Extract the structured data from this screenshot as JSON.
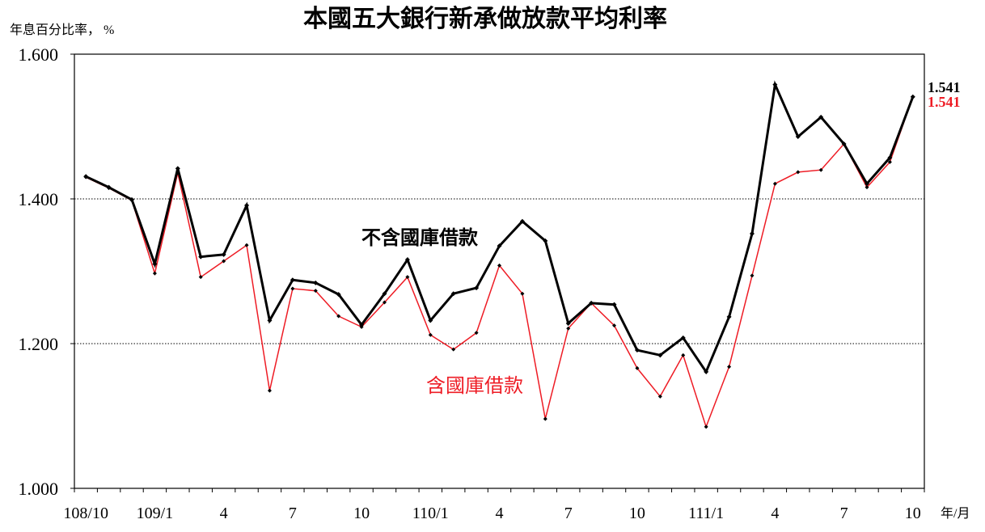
{
  "chart_data": {
    "type": "line",
    "title": "本國五大銀行新承做放款平均利率",
    "ylabel": "年息百分比率， %",
    "xlabel": "年/月",
    "ylim": [
      1.0,
      1.6
    ],
    "yticks": [
      {
        "value": 1.0,
        "label": "1.000"
      },
      {
        "value": 1.2,
        "label": "1.200"
      },
      {
        "value": 1.4,
        "label": "1.400"
      },
      {
        "value": 1.6,
        "label": "1.600"
      }
    ],
    "grid": "dotted horizontal",
    "grid_y": [
      1.2,
      1.4
    ],
    "categories": [
      "108/10",
      "",
      "",
      "109/1",
      "",
      "",
      "4",
      "",
      "",
      "7",
      "",
      "",
      "10",
      "",
      "",
      "110/1",
      "",
      "",
      "4",
      "",
      "",
      "7",
      "",
      "",
      "10",
      "",
      "",
      "111/1",
      "",
      "",
      "4",
      "",
      "",
      "7",
      "",
      "",
      "10"
    ],
    "series": [
      {
        "name": "不含國庫借款",
        "color": "#000000",
        "end_label": "1.541",
        "values": [
          1.431,
          1.416,
          1.399,
          1.31,
          1.442,
          1.32,
          1.323,
          1.391,
          1.232,
          1.288,
          1.284,
          1.268,
          1.226,
          1.269,
          1.316,
          1.232,
          1.269,
          1.277,
          1.335,
          1.369,
          1.342,
          1.228,
          1.256,
          1.254,
          1.191,
          1.184,
          1.208,
          1.161,
          1.237,
          1.352,
          1.558,
          1.486,
          1.513,
          1.476,
          1.421,
          1.457,
          1.541
        ]
      },
      {
        "name": "含國庫借款",
        "color": "#ee1c25",
        "end_label": "1.541",
        "values": [
          1.43,
          1.415,
          1.398,
          1.297,
          1.436,
          1.292,
          1.314,
          1.336,
          1.135,
          1.276,
          1.273,
          1.238,
          1.223,
          1.257,
          1.292,
          1.212,
          1.192,
          1.215,
          1.308,
          1.269,
          1.096,
          1.221,
          1.256,
          1.225,
          1.166,
          1.127,
          1.184,
          1.085,
          1.168,
          1.294,
          1.421,
          1.437,
          1.44,
          1.476,
          1.416,
          1.451,
          1.541
        ]
      }
    ]
  }
}
